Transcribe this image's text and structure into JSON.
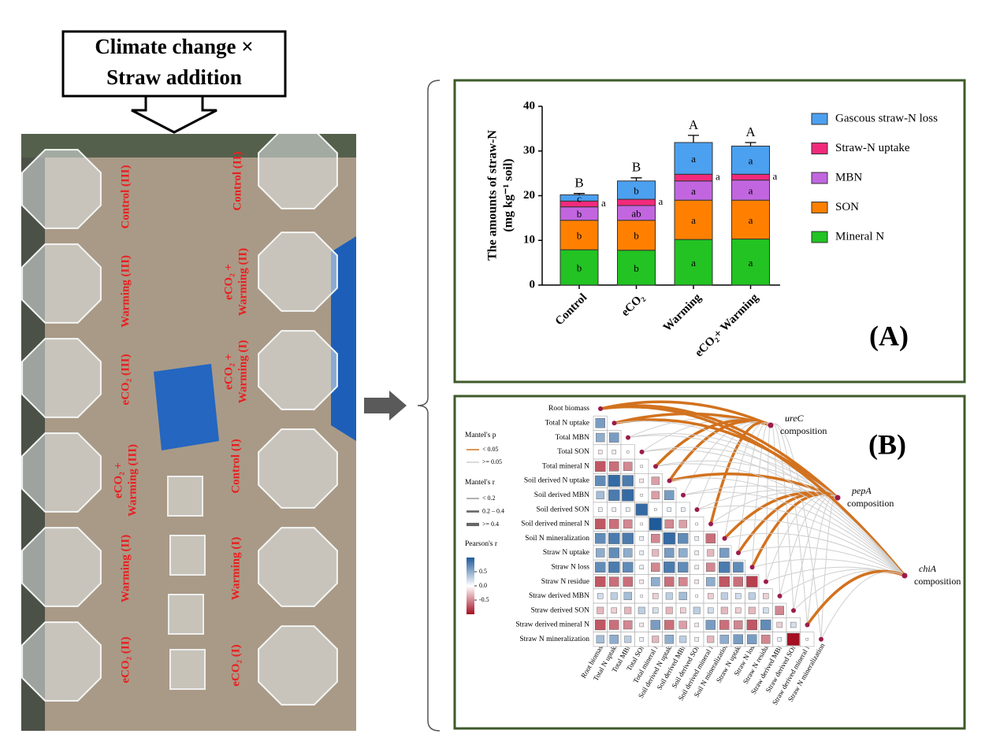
{
  "header": {
    "lines": [
      "Climate change ×",
      "Straw addition"
    ]
  },
  "photo": {
    "left_labels": [
      [
        "Control (III)"
      ],
      [
        "Warming (III)"
      ],
      [
        "eCO₂ (III)"
      ],
      [
        "eCO₂ +",
        "Warming (III)"
      ],
      [
        "Warming (II)"
      ],
      [
        "eCO₂ (II)"
      ]
    ],
    "right_labels": [
      [
        "Control (II)"
      ],
      [
        "eCO₂ +",
        "Warming (II)"
      ],
      [
        "eCO₂ +",
        "Warming (I)"
      ],
      [
        "Control (I)"
      ],
      [
        "Warming (I)"
      ],
      [
        "eCO₂ (I)"
      ]
    ]
  },
  "panel_a": {
    "label": "(A)"
  },
  "chart_data": {
    "type": "bar",
    "stacked": true,
    "y_label": [
      "The amounts of straw-N",
      "(mg kg⁻¹ soil)"
    ],
    "categories": [
      "Control",
      "eCO₂",
      "Warming",
      "eCO₂+ Warming"
    ],
    "ylim": [
      0,
      40
    ],
    "yticks": [
      0,
      10,
      20,
      30,
      40
    ],
    "total_letters": [
      "B",
      "B",
      "A",
      "A"
    ],
    "series": [
      {
        "name": "Mineral N",
        "color": "#22c322",
        "values": [
          7.9,
          7.8,
          10.2,
          10.3
        ],
        "errors": [
          0.4,
          0.3,
          0.4,
          1.0
        ],
        "letters": [
          "b",
          "b",
          "a",
          "a"
        ]
      },
      {
        "name": "SON",
        "color": "#ff8000",
        "values": [
          6.6,
          6.7,
          8.8,
          8.7
        ],
        "errors": [
          0.3,
          0.3,
          0.3,
          0.3
        ],
        "letters": [
          "b",
          "b",
          "a",
          "a"
        ]
      },
      {
        "name": "MBN",
        "color": "#c266e0",
        "values": [
          3.0,
          3.3,
          4.3,
          4.5
        ],
        "errors": [
          1.0,
          0.8,
          1.1,
          0.5
        ],
        "letters": [
          "b",
          "ab",
          "a",
          "a"
        ]
      },
      {
        "name": "Straw-N uptake",
        "color": "#f22a7c",
        "values": [
          1.3,
          1.4,
          1.5,
          1.3
        ],
        "errors": [
          0.4,
          0.4,
          0.3,
          0.4
        ],
        "letters": [
          "a",
          "a",
          "a",
          "a"
        ],
        "letters_outside": true
      },
      {
        "name": "Gascous straw-N loss",
        "color": "#4ca0f0",
        "values": [
          1.4,
          4.1,
          7.1,
          6.3
        ],
        "errors": [
          0.3,
          0.7,
          1.6,
          0.8
        ],
        "letters": [
          "c",
          "b",
          "a",
          "a"
        ]
      }
    ]
  },
  "panel_b": {
    "label": "(B)",
    "variables": [
      "Root biomass",
      "Total N uptake",
      "Total MBN",
      "Total SON",
      "Total mineral N",
      "Soil derived N uptake",
      "Soil derived MBN",
      "Soil derived SON",
      "Soil derived mineral N",
      "Soil N mineralization",
      "Straw N uptake",
      "Straw N loss",
      "Straw N residue",
      "Straw derived MBN",
      "Straw derived SON",
      "Straw derived mineral N",
      "Straw N mineralization"
    ],
    "matrix": [
      [],
      [
        0.6
      ],
      [
        0.5,
        0.6
      ],
      [
        -0.1,
        0.1,
        0.0
      ],
      [
        -0.7,
        -0.6,
        -0.5,
        0.0
      ],
      [
        0.7,
        0.9,
        0.8,
        -0.1,
        -0.4
      ],
      [
        0.4,
        0.8,
        0.9,
        0.0,
        -0.4,
        0.6
      ],
      [
        0.1,
        0.1,
        0.1,
        0.9,
        0.0,
        0.1,
        0.1
      ],
      [
        -0.7,
        -0.6,
        -0.5,
        0.0,
        1.0,
        -0.5,
        -0.4,
        0.0
      ],
      [
        0.7,
        0.8,
        0.8,
        0.1,
        -0.5,
        0.9,
        0.7,
        0.1,
        -0.6
      ],
      [
        0.5,
        0.7,
        0.5,
        0.1,
        -0.3,
        0.6,
        0.5,
        0.1,
        -0.3,
        0.6
      ],
      [
        0.7,
        0.8,
        0.7,
        0.1,
        -0.5,
        0.8,
        0.7,
        0.1,
        -0.5,
        0.8,
        0.7
      ],
      [
        -0.7,
        -0.6,
        -0.6,
        -0.1,
        0.5,
        -0.6,
        -0.5,
        -0.1,
        0.5,
        -0.7,
        -0.6,
        -0.8
      ],
      [
        0.2,
        0.3,
        0.4,
        0.0,
        -0.2,
        0.3,
        0.4,
        0.0,
        -0.2,
        0.3,
        0.2,
        0.3,
        -0.2
      ],
      [
        -0.3,
        -0.2,
        -0.3,
        0.3,
        0.2,
        -0.3,
        -0.2,
        0.3,
        0.2,
        -0.3,
        -0.2,
        -0.3,
        0.2,
        -0.5
      ],
      [
        -0.7,
        -0.6,
        -0.5,
        -0.1,
        0.6,
        -0.6,
        -0.4,
        -0.1,
        0.6,
        -0.6,
        -0.5,
        -0.7,
        0.7,
        -0.2,
        0.2
      ],
      [
        0.4,
        0.5,
        0.3,
        0.1,
        -0.3,
        0.5,
        0.3,
        0.1,
        -0.3,
        0.5,
        0.6,
        0.6,
        -0.5,
        0.1,
        -1.0,
        0.0
      ]
    ],
    "color_lim": [
      -1,
      1
    ],
    "colorbar_title": "Pearson's r",
    "colorbar_ticks": [
      {
        "value": 0.5,
        "label": "0.5"
      },
      {
        "value": 0,
        "label": "0.0"
      },
      {
        "value": -0.5,
        "label": "-0.5"
      }
    ],
    "mantel_p_title": "Mantel's p",
    "mantel_p_labels": [
      "< 0.05",
      ">= 0.05"
    ],
    "mantel_r_title": "Mantel's r",
    "mantel_r_labels": [
      "< 0.2",
      "0.2 – 0.4",
      ">= 0.4"
    ],
    "nodes": [
      {
        "name": "ureC",
        "sub": "composition",
        "significant": [
          "Root biomass",
          "Total N uptake",
          "Total mineral N",
          "Soil derived N uptake",
          "Soil derived mineral N"
        ]
      },
      {
        "name": "pepA",
        "sub": "composition",
        "significant": [
          "Root biomass",
          "Total N uptake",
          "Soil derived N uptake",
          "Soil N mineralization",
          "Straw N uptake",
          "Straw N loss"
        ]
      },
      {
        "name": "chiA",
        "sub": "composition",
        "significant": [
          "Root biomass",
          "Straw derived mineral N"
        ]
      }
    ]
  }
}
